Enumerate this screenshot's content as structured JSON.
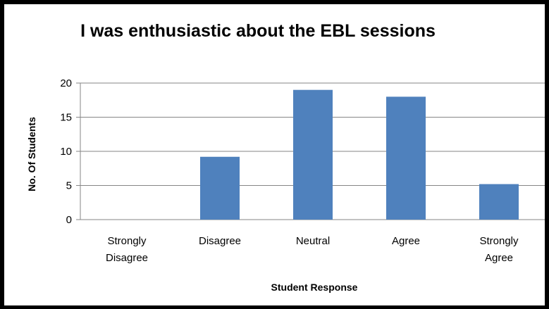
{
  "chart_data": {
    "type": "bar",
    "title": "I was enthusiastic about the EBL sessions",
    "xlabel": "Student Response",
    "ylabel": "No. Of Students",
    "categories": [
      [
        "Strongly",
        "Disagree"
      ],
      [
        "Disagree"
      ],
      [
        "Neutral"
      ],
      [
        "Agree"
      ],
      [
        "Strongly",
        "Agree"
      ]
    ],
    "values": [
      0,
      9.2,
      19,
      18,
      5.2
    ],
    "ylim": [
      0,
      20
    ],
    "yticks": [
      0,
      5,
      10,
      15,
      20
    ],
    "grid": true,
    "bar_color": "#4f81bd",
    "grid_color": "#868686"
  }
}
